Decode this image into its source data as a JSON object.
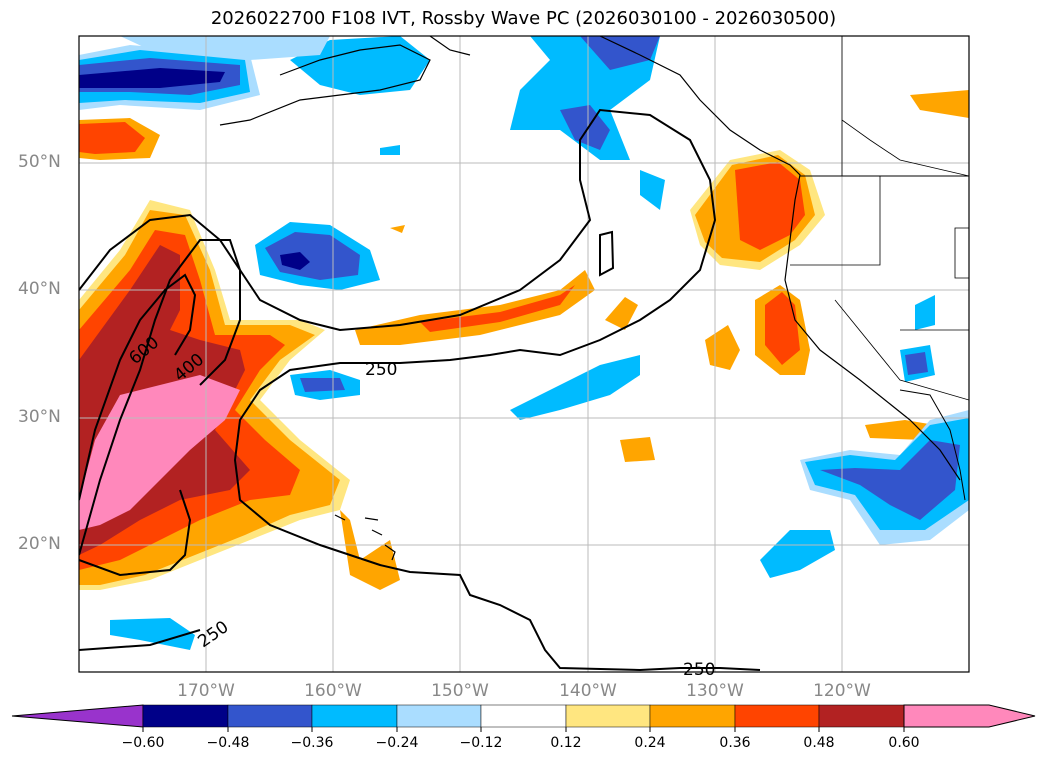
{
  "title": "2026022700 F108 IVT, Rossby Wave PC (2026030100 - 2026030500)",
  "lat_labels": [
    "50°N",
    "40°N",
    "30°N",
    "20°N"
  ],
  "lon_labels": [
    "170°W",
    "160°W",
    "150°W",
    "140°W",
    "130°W",
    "120°W"
  ],
  "contour_labels": [
    "600",
    "400",
    "250",
    "250",
    "250"
  ],
  "colorbar": {
    "ticks": [
      "−0.60",
      "−0.48",
      "−0.36",
      "−0.24",
      "−0.12",
      "0.12",
      "0.24",
      "0.36",
      "0.48",
      "0.60"
    ],
    "colors": [
      "#9933cc",
      "#000088",
      "#3355cc",
      "#00bbff",
      "#aaddff",
      "#ffffff",
      "#ffe680",
      "#ffa500",
      "#ff4400",
      "#b22222",
      "#ff88bb"
    ]
  },
  "palette": {
    "pink": "#ff88bb",
    "darkred": "#b22222",
    "red": "#ff4400",
    "orange": "#ffa500",
    "yellow": "#ffe680",
    "lightblue": "#aaddff",
    "cyan": "#00bbff",
    "blue": "#3355cc",
    "navy": "#000088"
  }
}
